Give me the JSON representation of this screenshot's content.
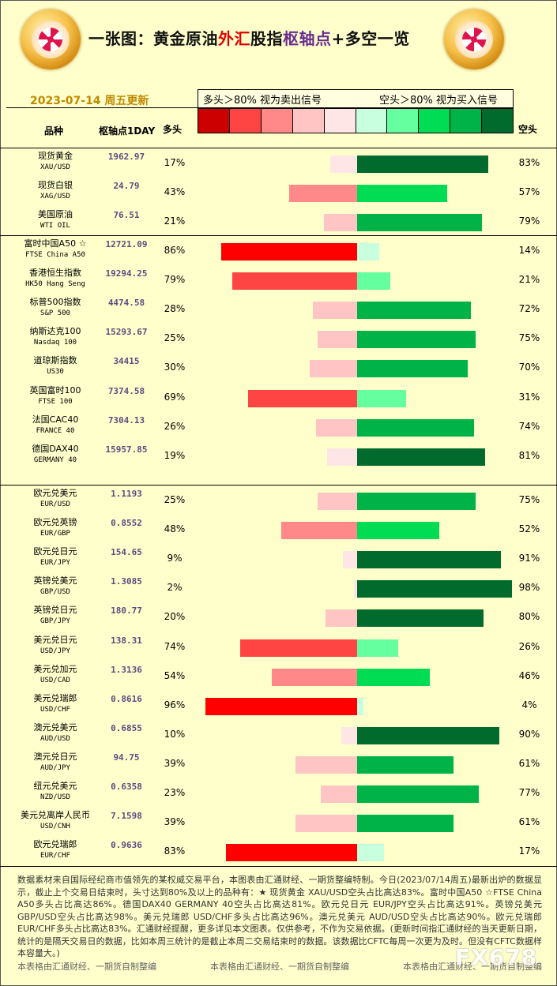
{
  "header": {
    "title_part1": "一张图：黄金原油",
    "title_part2": "外汇",
    "title_part3": "股指",
    "title_part4": "枢轴点",
    "title_part5": "+多空一览",
    "date": "2023-07-14 周五更新",
    "legend_left": "多头＞80%  视为卖出信号",
    "legend_right": "空头＞80%  视为买入信号"
  },
  "columns": {
    "name": "品种",
    "pivot": "枢轴点1DAY",
    "long": "多头",
    "short": "空头"
  },
  "scale_colors": [
    "#cc0000",
    "#ff4444",
    "#ff8888",
    "#ffc4c4",
    "#ffe6e6",
    "#c8ffde",
    "#66ffa0",
    "#00dd55",
    "#00b348",
    "#006b2c"
  ],
  "chart_data": {
    "type": "bar",
    "orientation": "horizontal-diverging",
    "categories": [
      "现货黄金 XAU/USD",
      "现货白银 XAG/USD",
      "美国原油 WTI OIL",
      "富时中国A50 ☆ FTSE China A50",
      "香港恒生指数 HK50 Hang Seng",
      "标普500指数 S&P 500",
      "纳斯达克100 Nasdaq 100",
      "道琼斯指数 US30",
      "英国富时100 FTSE 100",
      "法国CAC40 FRANCE 40",
      "德国DAX40 GERMANY 40",
      "欧元兑美元 EUR/USD",
      "欧元兑英镑 EUR/GBP",
      "欧元兑日元 EUR/JPY",
      "英镑兑美元 GBP/USD",
      "英镑兑日元 GBP/JPY",
      "美元兑日元 USD/JPY",
      "美元兑加元 USD/CAD",
      "美元兑瑞郎 USD/CHF",
      "澳元兑美元 AUD/USD",
      "澳元兑日元 AUD/JPY",
      "纽元兑美元 NZD/USD",
      "美元兑离岸人民币 USD/CNH",
      "欧元兑瑞郎 EUR/CHF"
    ],
    "series": [
      {
        "name": "多头",
        "values": [
          17,
          43,
          21,
          86,
          79,
          28,
          25,
          30,
          69,
          26,
          19,
          25,
          48,
          9,
          2,
          20,
          74,
          54,
          96,
          10,
          39,
          23,
          39,
          83
        ]
      },
      {
        "name": "空头",
        "values": [
          83,
          57,
          79,
          14,
          21,
          72,
          75,
          70,
          31,
          74,
          81,
          75,
          52,
          91,
          98,
          80,
          26,
          46,
          4,
          90,
          61,
          77,
          61,
          17
        ]
      }
    ],
    "xlim": [
      0,
      100
    ]
  },
  "groups": [
    {
      "rows": [
        {
          "cn": "现货黄金",
          "en": "XAU/USD",
          "pivot": "1962.97",
          "long": "17%",
          "short": "83%",
          "lv": 17,
          "sv": 83
        },
        {
          "cn": "现货白银",
          "en": "XAG/USD",
          "pivot": "24.79",
          "long": "43%",
          "short": "57%",
          "lv": 43,
          "sv": 57
        },
        {
          "cn": "美国原油",
          "en": "WTI OIL",
          "pivot": "76.51",
          "long": "21%",
          "short": "79%",
          "lv": 21,
          "sv": 79
        }
      ]
    },
    {
      "rows": [
        {
          "cn": "富时中国A50 ☆",
          "en": "FTSE China A50",
          "pivot": "12721.09",
          "long": "86%",
          "short": "14%",
          "lv": 86,
          "sv": 14
        },
        {
          "cn": "香港恒生指数",
          "en": "HK50 Hang Seng",
          "pivot": "19294.25",
          "long": "79%",
          "short": "21%",
          "lv": 79,
          "sv": 21
        },
        {
          "cn": "标普500指数",
          "en": "S&P 500",
          "pivot": "4474.58",
          "long": "28%",
          "short": "72%",
          "lv": 28,
          "sv": 72
        },
        {
          "cn": "纳斯达克100",
          "en": "Nasdaq 100",
          "pivot": "15293.67",
          "long": "25%",
          "short": "75%",
          "lv": 25,
          "sv": 75
        },
        {
          "cn": "道琼斯指数",
          "en": "US30",
          "pivot": "34415",
          "long": "30%",
          "short": "70%",
          "lv": 30,
          "sv": 70
        },
        {
          "cn": "英国富时100",
          "en": "FTSE 100",
          "pivot": "7374.58",
          "long": "69%",
          "short": "31%",
          "lv": 69,
          "sv": 31
        },
        {
          "cn": "法国CAC40",
          "en": "FRANCE 40",
          "pivot": "7304.13",
          "long": "26%",
          "short": "74%",
          "lv": 26,
          "sv": 74
        },
        {
          "cn": "德国DAX40",
          "en": "GERMANY 40",
          "pivot": "15957.85",
          "long": "19%",
          "short": "81%",
          "lv": 19,
          "sv": 81
        }
      ]
    },
    {
      "rows": [
        {
          "cn": "欧元兑美元",
          "en": "EUR/USD",
          "pivot": "1.1193",
          "long": "25%",
          "short": "75%",
          "lv": 25,
          "sv": 75
        },
        {
          "cn": "欧元兑英镑",
          "en": "EUR/GBP",
          "pivot": "0.8552",
          "long": "48%",
          "short": "52%",
          "lv": 48,
          "sv": 52
        },
        {
          "cn": "欧元兑日元",
          "en": "EUR/JPY",
          "pivot": "154.65",
          "long": "9%",
          "short": "91%",
          "lv": 9,
          "sv": 91
        },
        {
          "cn": "英镑兑美元",
          "en": "GBP/USD",
          "pivot": "1.3085",
          "long": "2%",
          "short": "98%",
          "lv": 2,
          "sv": 98
        },
        {
          "cn": "英镑兑日元",
          "en": "GBP/JPY",
          "pivot": "180.77",
          "long": "20%",
          "short": "80%",
          "lv": 20,
          "sv": 80
        },
        {
          "cn": "美元兑日元",
          "en": "USD/JPY",
          "pivot": "138.31",
          "long": "74%",
          "short": "26%",
          "lv": 74,
          "sv": 26
        },
        {
          "cn": "美元兑加元",
          "en": "USD/CAD",
          "pivot": "1.3136",
          "long": "54%",
          "short": "46%",
          "lv": 54,
          "sv": 46
        },
        {
          "cn": "美元兑瑞郎",
          "en": "USD/CHF",
          "pivot": "0.8616",
          "long": "96%",
          "short": "4%",
          "lv": 96,
          "sv": 4
        },
        {
          "cn": "澳元兑美元",
          "en": "AUD/USD",
          "pivot": "0.6855",
          "long": "10%",
          "short": "90%",
          "lv": 10,
          "sv": 90
        },
        {
          "cn": "澳元兑日元",
          "en": "AUD/JPY",
          "pivot": "94.75",
          "long": "39%",
          "short": "61%",
          "lv": 39,
          "sv": 61
        },
        {
          "cn": "纽元兑美元",
          "en": "NZD/USD",
          "pivot": "0.6358",
          "long": "23%",
          "short": "77%",
          "lv": 23,
          "sv": 77
        },
        {
          "cn": "美元兑离岸人民币",
          "en": "USD/CNH",
          "pivot": "7.1598",
          "long": "39%",
          "short": "61%",
          "lv": 39,
          "sv": 61
        },
        {
          "cn": "欧元兑瑞郎",
          "en": "EUR/CHF",
          "pivot": "0.9636",
          "long": "83%",
          "short": "17%",
          "lv": 83,
          "sv": 17
        }
      ]
    }
  ],
  "footer": {
    "text": "数据素材来自国际经纪商市值领先的某权威交易平台，本图表由汇通财经、一期货整编特制。今日(2023/07/14周五)最新出炉的数据显示，截止上个交易日结束时，头寸达到80%及以上的品种有：★ 现货黄金 XAU/USD空头占比高达83%。富时中国A50 ☆FTSE China A50多头占比高达86%。德国DAX40  GERMANY 40空头占比高达81%。欧元兑日元 EUR/JPY空头占比高达91%。英镑兑美元 GBP/USD空头占比高达98%。美元兑瑞郎 USD/CHF多头占比高达96%。澳元兑美元 AUD/USD空头占比高达90%。欧元兑瑞郎 EUR/CHF多头占比高达83%。汇通财经提醒，更多详见本文图表。仅供参考，不作为交易依据。(更新时间指汇通财经的当天更新日期，统计的是隔天交易日的数据，比如本周三统计的是截止本周二交易结束时的数据。该数据比CFTC每周一次更为及时。但没有CFTC数据样本容量大。)",
    "credit1": "本表格由汇通财经、一期货自制整编",
    "credit2": "本表格由汇通财经、一期货自制整编",
    "credit3": "本表格由汇通财经、一期货自制整编",
    "watermark": "FX678"
  }
}
